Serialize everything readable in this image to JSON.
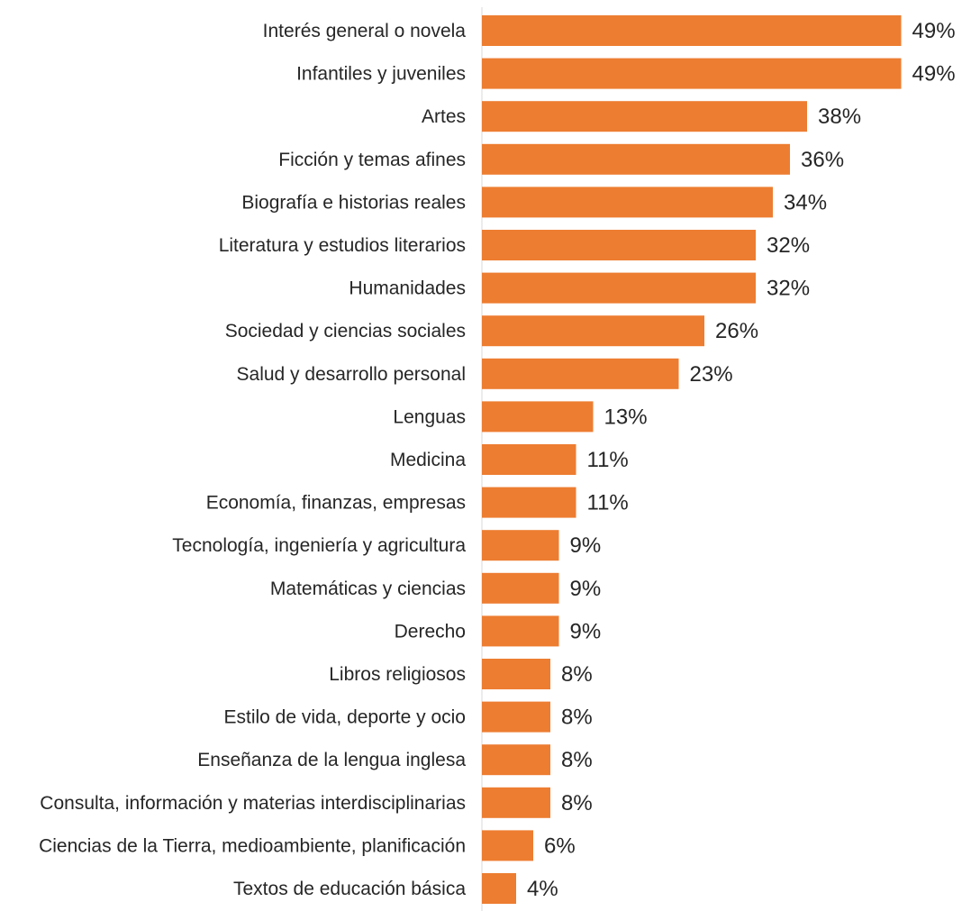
{
  "chart_data": {
    "type": "bar",
    "orientation": "horizontal",
    "categories": [
      "Interés general o novela",
      "Infantiles y juveniles",
      "Artes",
      "Ficción y temas afines",
      "Biografía e historias reales",
      "Literatura y estudios literarios",
      "Humanidades",
      "Sociedad y ciencias sociales",
      "Salud y desarrollo personal",
      "Lenguas",
      "Medicina",
      "Economía, finanzas, empresas",
      "Tecnología, ingeniería y agricultura",
      "Matemáticas y ciencias",
      "Derecho",
      "Libros religiosos",
      "Estilo de vida, deporte y ocio",
      "Enseñanza de la lengua inglesa",
      "Consulta, información y materias interdisciplinarias",
      "Ciencias de la Tierra, medioambiente, planificación",
      "Textos de educación básica"
    ],
    "values": [
      49,
      49,
      38,
      36,
      34,
      32,
      32,
      26,
      23,
      13,
      11,
      11,
      9,
      9,
      9,
      8,
      8,
      8,
      8,
      6,
      4
    ],
    "value_labels": [
      "49%",
      "49%",
      "38%",
      "36%",
      "34%",
      "32%",
      "32%",
      "26%",
      "23%",
      "13%",
      "11%",
      "11%",
      "9%",
      "9%",
      "9%",
      "8%",
      "8%",
      "8%",
      "8%",
      "6%",
      "4%"
    ],
    "title": "",
    "xlabel": "",
    "ylabel": "",
    "xlim": [
      0,
      50
    ],
    "grid": false,
    "legend": "none",
    "bar_color": "#ED7D31",
    "axis_color": "#D9D9D9"
  }
}
